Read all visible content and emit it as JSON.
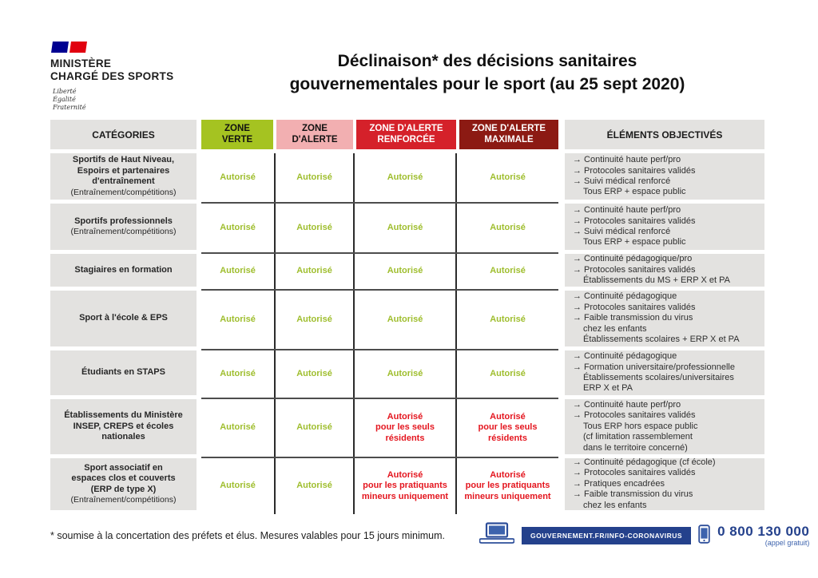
{
  "logo": {
    "line1": "MINISTÈRE",
    "line2": "CHARGÉ DES SPORTS",
    "motto": [
      "Liberté",
      "Égalité",
      "Fraternité"
    ]
  },
  "title": {
    "line1": "Déclinaison* des décisions sanitaires",
    "line2": "gouvernementales pour le sport (au 25 sept 2020)"
  },
  "colors": {
    "zone_verte_bg": "#a5c321",
    "zone_alerte_bg": "#f2afb1",
    "zone_renforcee_bg": "#d5212a",
    "zone_maximale_bg": "#8c1a13",
    "cell_gray": "#e3e2e0",
    "autorise_green": "#9fbe2e",
    "restriction_red": "#e4161f",
    "gov_blue": "#24418c"
  },
  "table": {
    "header_categories": "CATÉGORIES",
    "header_elements": "ÉLÉMENTS OBJECTIVÉS",
    "zone_headers": [
      {
        "id": "verte",
        "lines": [
          "ZONE",
          "VERTE"
        ],
        "bg": "#a5c321",
        "fg": "#111111"
      },
      {
        "id": "alerte",
        "lines": [
          "ZONE",
          "D'ALERTE"
        ],
        "bg": "#f2afb1",
        "fg": "#111111"
      },
      {
        "id": "alerte-renforcee",
        "lines": [
          "ZONE D'ALERTE",
          "RENFORCÉE"
        ],
        "bg": "#d5212a",
        "fg": "#ffffff"
      },
      {
        "id": "alerte-maximale",
        "lines": [
          "ZONE D'ALERTE",
          "MAXIMALE"
        ],
        "bg": "#8c1a13",
        "fg": "#ffffff"
      }
    ],
    "rows": [
      {
        "height": 63,
        "category": [
          "Sportifs de Haut Niveau,",
          "Espoirs et partenaires",
          "d'entraînement"
        ],
        "category_sub": "(Entraînement/compétitions)",
        "zones": [
          {
            "lines": [
              "Autorisé"
            ],
            "color": "green"
          },
          {
            "lines": [
              "Autorisé"
            ],
            "color": "green"
          },
          {
            "lines": [
              "Autorisé"
            ],
            "color": "green"
          },
          {
            "lines": [
              "Autorisé"
            ],
            "color": "green"
          }
        ],
        "elements": [
          {
            "arrow": true,
            "text": "Continuité haute perf/pro"
          },
          {
            "arrow": true,
            "text": "Protocoles sanitaires validés"
          },
          {
            "arrow": true,
            "text": "Suivi médical renforcé"
          },
          {
            "arrow": false,
            "text": "Tous ERP + espace public"
          }
        ]
      },
      {
        "height": 63,
        "category": [
          "Sportifs professionnels"
        ],
        "category_sub": "(Entraînement/compétitions)",
        "zones": [
          {
            "lines": [
              "Autorisé"
            ],
            "color": "green"
          },
          {
            "lines": [
              "Autorisé"
            ],
            "color": "green"
          },
          {
            "lines": [
              "Autorisé"
            ],
            "color": "green"
          },
          {
            "lines": [
              "Autorisé"
            ],
            "color": "green"
          }
        ],
        "elements": [
          {
            "arrow": true,
            "text": "Continuité haute perf/pro"
          },
          {
            "arrow": true,
            "text": "Protocoles sanitaires validés"
          },
          {
            "arrow": true,
            "text": "Suivi médical renforcé"
          },
          {
            "arrow": false,
            "text": "Tous ERP + espace public"
          }
        ]
      },
      {
        "height": 46,
        "category": [
          "Stagiaires en formation"
        ],
        "category_sub": "",
        "zones": [
          {
            "lines": [
              "Autorisé"
            ],
            "color": "green"
          },
          {
            "lines": [
              "Autorisé"
            ],
            "color": "green"
          },
          {
            "lines": [
              "Autorisé"
            ],
            "color": "green"
          },
          {
            "lines": [
              "Autorisé"
            ],
            "color": "green"
          }
        ],
        "elements": [
          {
            "arrow": true,
            "text": "Continuité pédagogique/pro"
          },
          {
            "arrow": true,
            "text": "Protocoles sanitaires validés"
          },
          {
            "arrow": false,
            "text": "Établissements du MS + ERP X et PA"
          }
        ]
      },
      {
        "height": 75,
        "category": [
          "Sport à l'école & EPS"
        ],
        "category_sub": "",
        "zones": [
          {
            "lines": [
              "Autorisé"
            ],
            "color": "green"
          },
          {
            "lines": [
              "Autorisé"
            ],
            "color": "green"
          },
          {
            "lines": [
              "Autorisé"
            ],
            "color": "green"
          },
          {
            "lines": [
              "Autorisé"
            ],
            "color": "green"
          }
        ],
        "elements": [
          {
            "arrow": true,
            "text": "Continuité pédagogique"
          },
          {
            "arrow": true,
            "text": "Protocoles sanitaires validés"
          },
          {
            "arrow": true,
            "text": "Faible transmission du virus"
          },
          {
            "arrow": false,
            "text": "chez les enfants"
          },
          {
            "arrow": false,
            "text": "Établissements scolaires + ERP X et PA"
          }
        ]
      },
      {
        "height": 61,
        "category": [
          "Étudiants en STAPS"
        ],
        "category_sub": "",
        "zones": [
          {
            "lines": [
              "Autorisé"
            ],
            "color": "green"
          },
          {
            "lines": [
              "Autorisé"
            ],
            "color": "green"
          },
          {
            "lines": [
              "Autorisé"
            ],
            "color": "green"
          },
          {
            "lines": [
              "Autorisé"
            ],
            "color": "green"
          }
        ],
        "elements": [
          {
            "arrow": true,
            "text": "Continuité pédagogique"
          },
          {
            "arrow": true,
            "text": "Formation universitaire/professionnelle"
          },
          {
            "arrow": false,
            "text": "Établissements scolaires/universitaires"
          },
          {
            "arrow": false,
            "text": "ERP X et PA"
          }
        ]
      },
      {
        "height": 74,
        "category": [
          "Établissements du Ministère",
          "INSEP, CREPS et écoles",
          "nationales"
        ],
        "category_sub": "",
        "zones": [
          {
            "lines": [
              "Autorisé"
            ],
            "color": "green"
          },
          {
            "lines": [
              "Autorisé"
            ],
            "color": "green"
          },
          {
            "lines": [
              "Autorisé",
              "pour les seuls",
              "résidents"
            ],
            "color": "red"
          },
          {
            "lines": [
              "Autorisé",
              "pour les seuls",
              "résidents"
            ],
            "color": "red"
          }
        ],
        "elements": [
          {
            "arrow": true,
            "text": "Continuité haute perf/pro"
          },
          {
            "arrow": true,
            "text": "Protocoles sanitaires validés"
          },
          {
            "arrow": false,
            "text": "Tous ERP hors espace public"
          },
          {
            "arrow": false,
            "text": "(cf limitation rassemblement"
          },
          {
            "arrow": false,
            "text": "dans le territoire concerné)"
          }
        ]
      },
      {
        "height": 70,
        "category": [
          "Sport associatif en",
          "espaces clos et couverts",
          "(ERP de type X)"
        ],
        "category_sub": "(Entraînement/compétitions)",
        "zones": [
          {
            "lines": [
              "Autorisé"
            ],
            "color": "green"
          },
          {
            "lines": [
              "Autorisé"
            ],
            "color": "green"
          },
          {
            "lines": [
              "Autorisé",
              "pour les pratiquants",
              "mineurs uniquement"
            ],
            "color": "red"
          },
          {
            "lines": [
              "Autorisé",
              "pour les pratiquants",
              "mineurs uniquement"
            ],
            "color": "red"
          }
        ],
        "elements": [
          {
            "arrow": true,
            "text": "Continuité pédagogique (cf école)"
          },
          {
            "arrow": true,
            "text": "Protocoles sanitaires validés"
          },
          {
            "arrow": true,
            "text": "Pratiques encadrées"
          },
          {
            "arrow": true,
            "text": "Faible transmission du virus"
          },
          {
            "arrow": false,
            "text": "chez les enfants"
          }
        ]
      }
    ]
  },
  "footnote": "* soumise à la concertation des préfets et élus. Mesures valables pour 15 jours minimum.",
  "footer": {
    "url_label": "GOUVERNEMENT.FR/INFO-CORONAVIRUS",
    "phone": "0 800 130 000",
    "phone_note": "(appel gratuit)"
  }
}
